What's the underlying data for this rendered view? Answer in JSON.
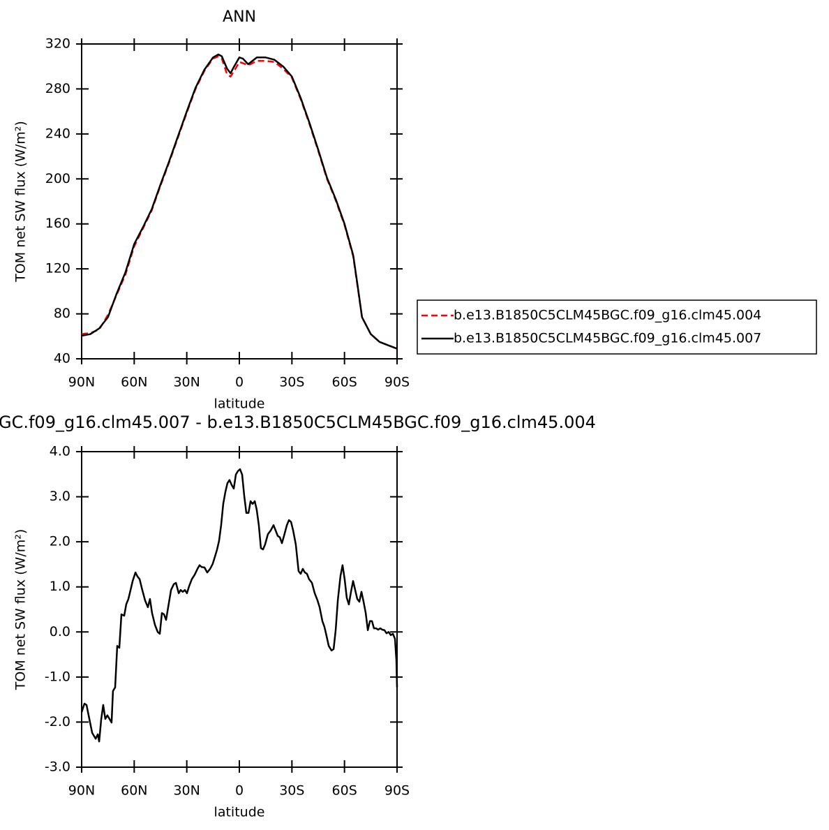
{
  "chart_data": [
    {
      "type": "line",
      "title": "ANN",
      "xlabel": "latitude",
      "ylabel": "TOM net SW flux (W/m²)",
      "xlim": [
        90,
        -90
      ],
      "xticks": [
        {
          "value": 90,
          "label": "90N"
        },
        {
          "value": 60,
          "label": "60N"
        },
        {
          "value": 30,
          "label": "30N"
        },
        0,
        {
          "value": -30,
          "label": "30S"
        },
        {
          "value": -60,
          "label": "60S"
        },
        {
          "value": -90,
          "label": "90S"
        }
      ],
      "ylim": [
        40,
        320
      ],
      "yticks": [
        40,
        80,
        120,
        160,
        200,
        240,
        280,
        320
      ],
      "legend": "right",
      "x": [
        90,
        85,
        80,
        75,
        70,
        65,
        60,
        55,
        50,
        45,
        40,
        35,
        30,
        25,
        20,
        15,
        12,
        10,
        7,
        5,
        3,
        0,
        -2,
        -5,
        -10,
        -15,
        -20,
        -25,
        -30,
        -35,
        -40,
        -45,
        -50,
        -55,
        -60,
        -65,
        -67.5,
        -70,
        -75,
        -80,
        -85,
        -90
      ],
      "series": [
        {
          "name": "b.e13.B1850C5CLM45BGC.f09_g16.clm45.004",
          "color": "#ff0000",
          "dashed": true,
          "values": [
            62,
            63,
            66,
            79,
            97,
            115,
            140,
            156,
            172,
            194,
            215,
            237,
            259,
            280,
            296,
            307,
            309,
            307,
            293,
            291,
            296,
            304,
            303,
            301,
            305,
            305,
            304,
            298,
            290,
            271,
            249,
            225,
            200,
            181,
            159,
            131,
            104,
            77,
            62,
            55,
            52,
            49
          ]
        },
        {
          "name": "b.e13.B1850C5CLM45BGC.f09_g16.clm45.007",
          "color": "#000000",
          "dashed": false,
          "values": [
            60.5,
            62,
            67,
            77,
            98,
            117,
            142,
            157,
            173,
            195,
            216,
            238,
            260,
            281,
            297,
            308,
            310.7,
            309,
            298,
            294,
            300,
            308,
            307,
            302,
            308,
            308,
            306,
            300,
            291,
            272,
            250,
            226,
            201,
            182,
            160,
            132,
            105,
            77,
            62,
            55,
            52,
            49
          ]
        }
      ]
    },
    {
      "type": "line",
      "title": "GC.f09_g16.clm45.007 - b.e13.B1850C5CLM45BGC.f09_g16.clm45.004",
      "xlabel": "latitude",
      "ylabel": "TOM net SW flux (W/m²)",
      "xlim": [
        90,
        -90
      ],
      "xticks": [
        {
          "value": 90,
          "label": "90N"
        },
        {
          "value": 60,
          "label": "60N"
        },
        {
          "value": 30,
          "label": "30N"
        },
        0,
        {
          "value": -30,
          "label": "30S"
        },
        {
          "value": -60,
          "label": "60S"
        },
        {
          "value": -90,
          "label": "90S"
        }
      ],
      "ylim": [
        -3,
        4
      ],
      "yticks": [
        {
          "value": -3,
          "label": "-3.0"
        },
        {
          "value": -2,
          "label": "-2.0"
        },
        {
          "value": -1,
          "label": "-1.0"
        },
        {
          "value": 0,
          "label": "0.0"
        },
        {
          "value": 1,
          "label": "1.0"
        },
        {
          "value": 2,
          "label": "2.0"
        },
        {
          "value": 3,
          "label": "3.0"
        },
        {
          "value": 4,
          "label": "4.0"
        }
      ],
      "color": "#000000",
      "x": [
        90,
        88.4,
        87.2,
        86.0,
        84.0,
        82.0,
        80.8,
        80.0,
        78.8,
        77.7,
        76.5,
        75.3,
        74.1,
        72.9,
        72.1,
        70.9,
        69.7,
        68.5,
        67.3,
        65.7,
        64.5,
        63.3,
        62.1,
        60.9,
        59.3,
        58.1,
        56.9,
        55.4,
        53.8,
        52.2,
        51.0,
        49.8,
        48.2,
        46.6,
        45.4,
        44.2,
        43.0,
        41.8,
        40.6,
        39.0,
        37.4,
        36.2,
        34.6,
        33.5,
        32.3,
        31.1,
        29.9,
        28.7,
        27.1,
        25.5,
        23.9,
        22.7,
        21.5,
        19.9,
        18.3,
        16.7,
        15.2,
        14.0,
        12.8,
        11.6,
        10.4,
        9.2,
        8.0,
        6.8,
        5.6,
        4.4,
        3.2,
        2.0,
        0.8,
        -0.4,
        -1.6,
        -2.8,
        -4.0,
        -5.2,
        -6.4,
        -7.6,
        -8.8,
        -9.9,
        -11.1,
        -12.3,
        -13.5,
        -14.7,
        -16.3,
        -17.9,
        -19.5,
        -20.7,
        -21.9,
        -23.1,
        -24.3,
        -25.5,
        -27.1,
        -28.3,
        -29.5,
        -30.7,
        -32.2,
        -33.8,
        -35.0,
        -36.2,
        -37.4,
        -38.6,
        -39.8,
        -41.4,
        -43.0,
        -44.6,
        -45.8,
        -47.4,
        -48.6,
        -49.8,
        -51.0,
        -52.6,
        -53.8,
        -55.0,
        -56.2,
        -57.7,
        -58.9,
        -60.1,
        -61.3,
        -62.5,
        -63.7,
        -64.9,
        -66.1,
        -67.3,
        -68.5,
        -69.7,
        -70.9,
        -72.1,
        -73.3,
        -74.5,
        -75.7,
        -76.8,
        -78.0,
        -79.2,
        -80.4,
        -81.6,
        -82.8,
        -84.0,
        -85.2,
        -86.4,
        -87.6,
        -88.8,
        -89.6,
        -90
      ],
      "values": [
        -1.78,
        -1.59,
        -1.62,
        -1.85,
        -2.24,
        -2.37,
        -2.27,
        -2.43,
        -1.93,
        -1.62,
        -1.93,
        -1.85,
        -1.93,
        -2.01,
        -1.31,
        -1.23,
        -0.31,
        -0.35,
        0.39,
        0.36,
        0.62,
        0.73,
        0.93,
        1.13,
        1.32,
        1.23,
        1.17,
        0.93,
        0.7,
        0.55,
        0.73,
        0.42,
        0.16,
        0.0,
        -0.04,
        0.42,
        0.39,
        0.27,
        0.55,
        0.93,
        1.06,
        1.09,
        0.86,
        0.93,
        0.89,
        0.93,
        0.86,
        1.01,
        1.17,
        1.27,
        1.4,
        1.48,
        1.44,
        1.43,
        1.32,
        1.4,
        1.51,
        1.66,
        1.82,
        2.02,
        2.37,
        2.84,
        3.1,
        3.3,
        3.37,
        3.26,
        3.18,
        3.49,
        3.57,
        3.61,
        3.49,
        3.02,
        2.64,
        2.64,
        2.9,
        2.84,
        2.9,
        2.71,
        2.37,
        1.86,
        1.83,
        1.94,
        2.17,
        2.25,
        2.37,
        2.25,
        2.13,
        2.1,
        1.97,
        2.13,
        2.37,
        2.48,
        2.44,
        2.25,
        1.94,
        1.35,
        1.29,
        1.4,
        1.32,
        1.29,
        1.17,
        1.09,
        0.86,
        0.7,
        0.55,
        0.24,
        0.11,
        -0.1,
        -0.31,
        -0.41,
        -0.38,
        0.05,
        0.7,
        1.24,
        1.48,
        1.17,
        0.76,
        0.61,
        0.89,
        1.13,
        0.93,
        0.73,
        0.67,
        0.89,
        0.67,
        0.42,
        0.04,
        0.24,
        0.24,
        0.08,
        0.08,
        0.05,
        0.08,
        0.05,
        0.04,
        -0.03,
        0.0,
        -0.07,
        -0.04,
        -0.15,
        -0.62,
        -1.23
      ]
    }
  ]
}
